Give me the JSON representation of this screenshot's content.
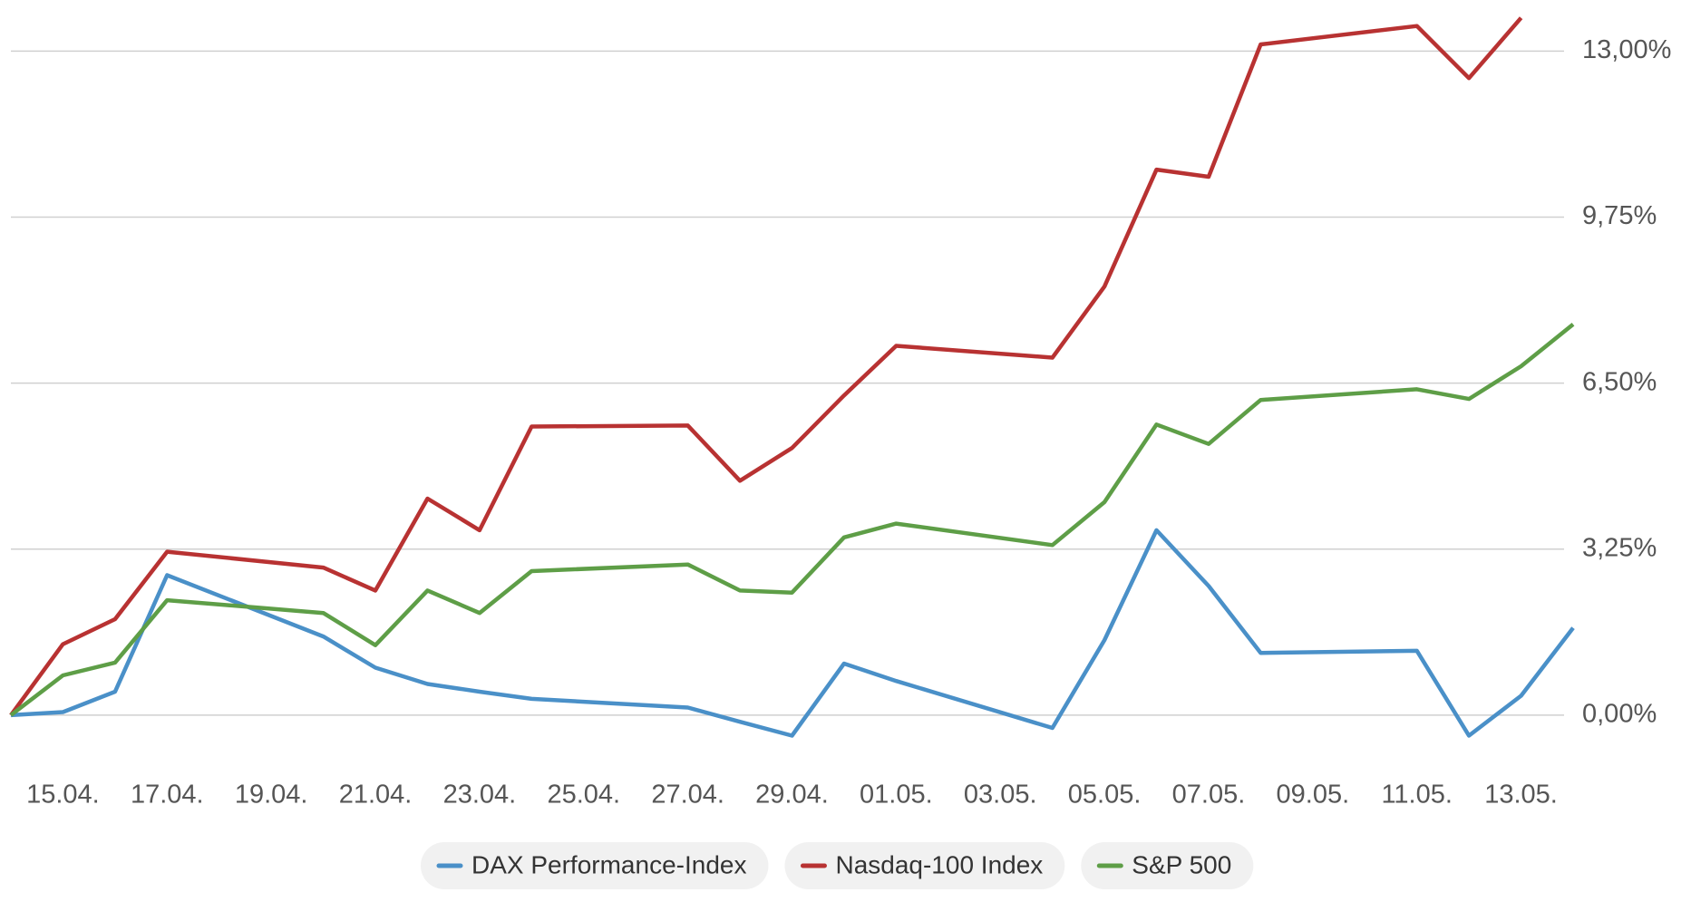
{
  "chart_data": {
    "type": "line",
    "x": [
      "14.04.",
      "15.04.",
      "16.04.",
      "17.04.",
      "20.04.",
      "21.04.",
      "22.04.",
      "23.04.",
      "24.04.",
      "27.04.",
      "28.04.",
      "29.04.",
      "30.04.",
      "01.05.",
      "04.05.",
      "05.05.",
      "06.05.",
      "07.05.",
      "08.05.",
      "11.05.",
      "12.05.",
      "13.05.",
      "14.05."
    ],
    "xticks": [
      "15.04.",
      "17.04.",
      "19.04.",
      "21.04.",
      "23.04.",
      "25.04.",
      "27.04.",
      "29.04.",
      "01.05.",
      "03.05.",
      "05.05.",
      "07.05.",
      "09.05.",
      "11.05.",
      "13.05."
    ],
    "series": [
      {
        "name": "DAX Performance-Index",
        "color": "#4a90c8",
        "values": [
          0,
          0.06,
          0.46,
          2.74,
          1.54,
          0.93,
          0.61,
          0.46,
          0.32,
          0.15,
          -0.13,
          -0.4,
          1.01,
          0.67,
          -0.25,
          1.47,
          3.62,
          2.53,
          1.22,
          1.26,
          -0.4,
          0.38,
          1.71
        ]
      },
      {
        "name": "Nasdaq-100 Index",
        "color": "#b83232",
        "values": [
          0,
          1.39,
          1.88,
          3.2,
          2.89,
          2.44,
          4.24,
          3.62,
          5.65,
          5.67,
          4.59,
          5.23,
          6.26,
          7.23,
          7.0,
          8.39,
          10.68,
          10.54,
          13.13,
          13.49,
          12.47,
          13.65,
          null
        ]
      },
      {
        "name": "S&P 500",
        "color": "#5e9e47",
        "values": [
          0,
          0.78,
          1.03,
          2.25,
          2.0,
          1.37,
          2.44,
          2.0,
          2.82,
          2.95,
          2.44,
          2.4,
          3.48,
          3.75,
          3.33,
          4.17,
          5.69,
          5.31,
          6.17,
          6.38,
          6.19,
          6.83,
          7.65
        ]
      }
    ],
    "ylim": [
      -0.8,
      14
    ],
    "yticks": [
      {
        "value": 0,
        "label": "0,00%"
      },
      {
        "value": 3.25,
        "label": "3,25%"
      },
      {
        "value": 6.5,
        "label": "6,50%"
      },
      {
        "value": 9.75,
        "label": "9,75%"
      },
      {
        "value": 13,
        "label": "13,00%"
      }
    ],
    "grid": true,
    "legend": "bottom"
  }
}
